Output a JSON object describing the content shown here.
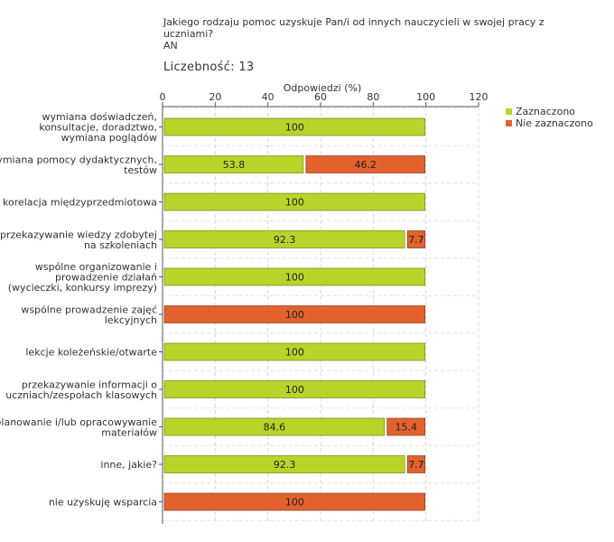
{
  "title": "Jakiego rodzaju pomoc uzyskuje Pan/i od innych nauczycieli w swojej pracy z uczniami?",
  "subtitle": "AN",
  "count_label": "Liczebność:",
  "count_value": "13",
  "colors": {
    "selected": "#b8d42a",
    "selected_stroke": "#6e8a10",
    "not_selected": "#e2622d",
    "not_selected_stroke": "#8c3b17"
  },
  "chart_data": {
    "type": "bar",
    "orientation": "horizontal",
    "stacked": true,
    "xlabel": "Odpowiedzi (%)",
    "xlim": [
      0,
      120
    ],
    "xticks": [
      "0",
      "20",
      "40",
      "60",
      "80",
      "100",
      "120"
    ],
    "grid": true,
    "legend_position": "top-right",
    "categories": [
      [
        "wymiana doświadczeń,",
        "konsultacje, doradztwo,",
        "wymiana poglądów"
      ],
      [
        "wymiana pomocy dydaktycznych,",
        "testów"
      ],
      [
        "korelacja międzyprzedmiotowa"
      ],
      [
        "przekazywanie wiedzy zdobytej",
        "na szkoleniach"
      ],
      [
        "wspólne organizowanie i",
        "prowadzenie działań",
        "(wycieczki, konkursy imprezy)"
      ],
      [
        "wspólne prowadzenie zajęć",
        "lekcyjnych"
      ],
      [
        "lekcje koleżeńskie/otwarte"
      ],
      [
        "przekazywanie informacji o",
        "uczniach/zespołach klasowych"
      ],
      [
        "planowanie i/lub opracowywanie",
        "materiałów"
      ],
      [
        "inne, jakie?"
      ],
      [
        "nie uzyskuję wsparcia"
      ]
    ],
    "series": [
      {
        "name": "Zaznaczono",
        "values": [
          100,
          53.8,
          100,
          92.3,
          100,
          0,
          100,
          100,
          84.6,
          92.3,
          0
        ]
      },
      {
        "name": "Nie zaznaczono",
        "values": [
          0,
          46.2,
          0,
          7.7,
          0,
          100,
          0,
          0,
          15.4,
          7.7,
          100
        ]
      }
    ],
    "data_labels": [
      [
        "100",
        "53.8",
        "100",
        "92.3",
        "100",
        "",
        "100",
        "100",
        "84.6",
        "92.3",
        ""
      ],
      [
        "",
        "46.2",
        "",
        "7.7",
        "",
        "100",
        "",
        "",
        "15.4",
        "7.7",
        "100"
      ]
    ]
  }
}
